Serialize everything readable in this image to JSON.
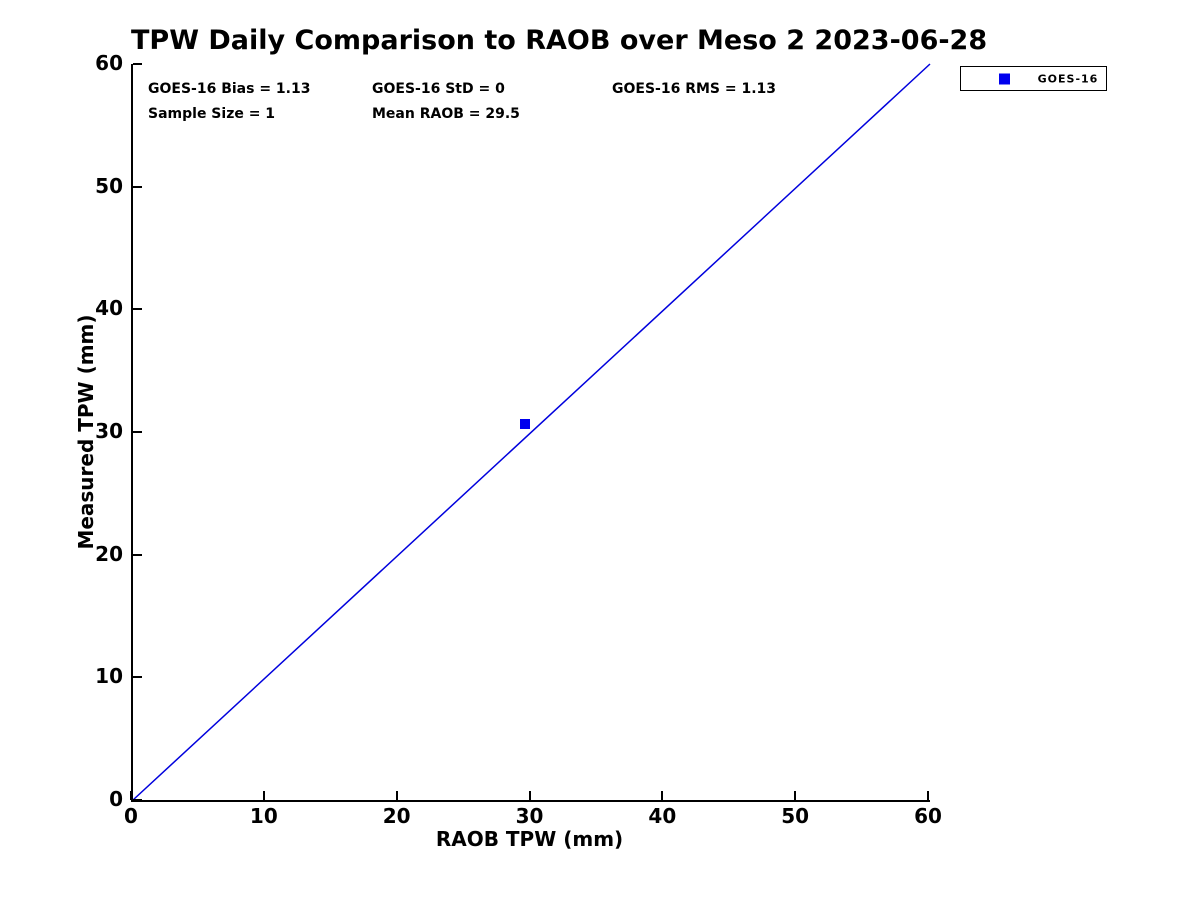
{
  "title": "TPW Daily Comparison to RAOB over Meso 2 2023-06-28",
  "annotations": {
    "bias": "GOES-16 Bias = 1.13",
    "std": "GOES-16 StD = 0",
    "rms": "GOES-16 RMS = 1.13",
    "sample_size": "Sample Size = 1",
    "mean_raob": "Mean RAOB = 29.5"
  },
  "legend": {
    "position": "outside-top-right",
    "entries": [
      {
        "label": "GOES-16",
        "marker": "square",
        "marker_color": "#0000ee"
      }
    ]
  },
  "colors": {
    "axis": "#000000",
    "background": "#ffffff",
    "line_blue": "#0000dd",
    "marker_blue": "#0000ee"
  },
  "chart_data": {
    "type": "scatter",
    "title": "TPW Daily Comparison to RAOB over Meso 2 2023-06-28",
    "xlabel": "RAOB TPW (mm)",
    "ylabel": "Measured TPW (mm)",
    "xlim": [
      0,
      60
    ],
    "ylim": [
      0,
      60
    ],
    "xticks": [
      0,
      10,
      20,
      30,
      40,
      50,
      60
    ],
    "yticks": [
      0,
      10,
      20,
      30,
      40,
      50,
      60
    ],
    "grid": false,
    "legend_position": "outside-top-right",
    "series": [
      {
        "name": "GOES-16",
        "type": "scatter",
        "marker": "square",
        "color": "#0000ee",
        "points": [
          [
            29.5,
            30.63
          ]
        ]
      }
    ],
    "reference_line": {
      "name": "identity-line",
      "from": [
        0,
        0
      ],
      "to": [
        60,
        60
      ],
      "color": "#0000dd",
      "width": 1.5
    },
    "stats": {
      "bias": 1.13,
      "std": 0,
      "rms": 1.13,
      "sample_size": 1,
      "mean_raob": 29.5
    }
  }
}
